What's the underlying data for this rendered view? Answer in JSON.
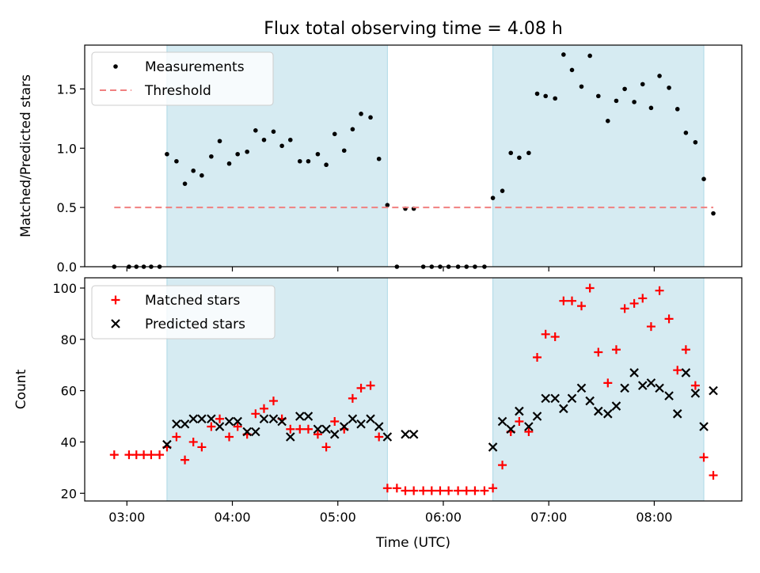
{
  "chart_data": {
    "title": "Flux total observing time = 4.08 h",
    "type": "scatter",
    "x_unit": "hours UTC",
    "xlabel": "Time (UTC)",
    "xlim": [
      2.6,
      8.83
    ],
    "x_ticks": [
      3,
      4,
      5,
      6,
      7,
      8
    ],
    "x_tick_labels": [
      "03:00",
      "04:00",
      "05:00",
      "06:00",
      "07:00",
      "08:00"
    ],
    "shaded_intervals": [
      [
        3.38,
        5.47
      ],
      [
        6.47,
        8.47
      ]
    ],
    "shade_color": "#add8e6",
    "panels": [
      {
        "name": "ratio",
        "ylabel": "Matched/Predicted stars",
        "ylim": [
          0,
          1.87
        ],
        "y_ticks": [
          0.0,
          0.5,
          1.0,
          1.5
        ],
        "y_tick_labels": [
          "0.0",
          "0.5",
          "1.0",
          "1.5"
        ],
        "legend": {
          "position": "upper-left",
          "entries": [
            "Measurements",
            "Threshold"
          ]
        },
        "series": [
          {
            "name": "Measurements",
            "type": "scatter",
            "marker": "dot",
            "color": "#000000",
            "points": [
              [
                2.88,
                0.0
              ],
              [
                3.02,
                0.0
              ],
              [
                3.09,
                0.0
              ],
              [
                3.16,
                0.0
              ],
              [
                3.23,
                0.0
              ],
              [
                3.31,
                0.0
              ],
              [
                3.38,
                0.95
              ],
              [
                3.47,
                0.89
              ],
              [
                3.55,
                0.7
              ],
              [
                3.63,
                0.81
              ],
              [
                3.71,
                0.77
              ],
              [
                3.8,
                0.93
              ],
              [
                3.88,
                1.06
              ],
              [
                3.97,
                0.87
              ],
              [
                4.05,
                0.95
              ],
              [
                4.14,
                0.97
              ],
              [
                4.22,
                1.15
              ],
              [
                4.3,
                1.07
              ],
              [
                4.39,
                1.14
              ],
              [
                4.47,
                1.02
              ],
              [
                4.55,
                1.07
              ],
              [
                4.64,
                0.89
              ],
              [
                4.72,
                0.89
              ],
              [
                4.81,
                0.95
              ],
              [
                4.89,
                0.86
              ],
              [
                4.97,
                1.12
              ],
              [
                5.06,
                0.98
              ],
              [
                5.14,
                1.16
              ],
              [
                5.22,
                1.29
              ],
              [
                5.31,
                1.26
              ],
              [
                5.39,
                0.91
              ],
              [
                5.47,
                0.52
              ],
              [
                5.56,
                0.0
              ],
              [
                5.64,
                0.49
              ],
              [
                5.72,
                0.49
              ],
              [
                5.81,
                0.0
              ],
              [
                5.89,
                0.0
              ],
              [
                5.97,
                0.0
              ],
              [
                6.05,
                0.0
              ],
              [
                6.14,
                0.0
              ],
              [
                6.22,
                0.0
              ],
              [
                6.3,
                0.0
              ],
              [
                6.39,
                0.0
              ],
              [
                6.47,
                0.58
              ],
              [
                6.56,
                0.64
              ],
              [
                6.64,
                0.96
              ],
              [
                6.72,
                0.92
              ],
              [
                6.81,
                0.96
              ],
              [
                6.89,
                1.46
              ],
              [
                6.97,
                1.44
              ],
              [
                7.06,
                1.42
              ],
              [
                7.14,
                1.79
              ],
              [
                7.22,
                1.66
              ],
              [
                7.31,
                1.52
              ],
              [
                7.39,
                1.78
              ],
              [
                7.47,
                1.44
              ],
              [
                7.56,
                1.23
              ],
              [
                7.64,
                1.4
              ],
              [
                7.72,
                1.5
              ],
              [
                7.81,
                1.39
              ],
              [
                7.89,
                1.54
              ],
              [
                7.97,
                1.34
              ],
              [
                8.05,
                1.61
              ],
              [
                8.14,
                1.51
              ],
              [
                8.22,
                1.33
              ],
              [
                8.3,
                1.13
              ],
              [
                8.39,
                1.05
              ],
              [
                8.47,
                0.74
              ],
              [
                8.56,
                0.45
              ]
            ]
          },
          {
            "name": "Threshold",
            "type": "line",
            "style": "dashed",
            "color": "#f08080",
            "y": 0.5,
            "x_range": [
              2.88,
              8.56
            ]
          }
        ]
      },
      {
        "name": "counts",
        "ylabel": "Count",
        "ylim": [
          17,
          104
        ],
        "y_ticks": [
          20,
          40,
          60,
          80,
          100
        ],
        "y_tick_labels": [
          "20",
          "40",
          "60",
          "80",
          "100"
        ],
        "legend": {
          "position": "upper-left",
          "entries": [
            "Matched stars",
            "Predicted stars"
          ]
        },
        "series": [
          {
            "name": "Matched stars",
            "type": "scatter",
            "marker": "plus",
            "color": "#ff0000",
            "points": [
              [
                2.88,
                35
              ],
              [
                3.02,
                35
              ],
              [
                3.09,
                35
              ],
              [
                3.16,
                35
              ],
              [
                3.23,
                35
              ],
              [
                3.31,
                35
              ],
              [
                3.38,
                38
              ],
              [
                3.47,
                42
              ],
              [
                3.55,
                33
              ],
              [
                3.63,
                40
              ],
              [
                3.71,
                38
              ],
              [
                3.8,
                46
              ],
              [
                3.88,
                49
              ],
              [
                3.97,
                42
              ],
              [
                4.05,
                46
              ],
              [
                4.14,
                43
              ],
              [
                4.22,
                51
              ],
              [
                4.3,
                53
              ],
              [
                4.39,
                56
              ],
              [
                4.47,
                49
              ],
              [
                4.55,
                45
              ],
              [
                4.64,
                45
              ],
              [
                4.72,
                45
              ],
              [
                4.81,
                43
              ],
              [
                4.89,
                38
              ],
              [
                4.97,
                48
              ],
              [
                5.06,
                45
              ],
              [
                5.14,
                57
              ],
              [
                5.22,
                61
              ],
              [
                5.31,
                62
              ],
              [
                5.39,
                42
              ],
              [
                5.47,
                22
              ],
              [
                5.56,
                22
              ],
              [
                5.64,
                21
              ],
              [
                5.72,
                21
              ],
              [
                5.81,
                21
              ],
              [
                5.89,
                21
              ],
              [
                5.97,
                21
              ],
              [
                6.05,
                21
              ],
              [
                6.14,
                21
              ],
              [
                6.22,
                21
              ],
              [
                6.3,
                21
              ],
              [
                6.39,
                21
              ],
              [
                6.47,
                22
              ],
              [
                6.56,
                31
              ],
              [
                6.64,
                44
              ],
              [
                6.72,
                48
              ],
              [
                6.81,
                44
              ],
              [
                6.89,
                73
              ],
              [
                6.97,
                82
              ],
              [
                7.06,
                81
              ],
              [
                7.14,
                95
              ],
              [
                7.22,
                95
              ],
              [
                7.31,
                93
              ],
              [
                7.39,
                100
              ],
              [
                7.47,
                75
              ],
              [
                7.56,
                63
              ],
              [
                7.64,
                76
              ],
              [
                7.72,
                92
              ],
              [
                7.81,
                94
              ],
              [
                7.89,
                96
              ],
              [
                7.97,
                85
              ],
              [
                8.05,
                99
              ],
              [
                8.14,
                88
              ],
              [
                8.22,
                68
              ],
              [
                8.3,
                76
              ],
              [
                8.39,
                62
              ],
              [
                8.47,
                34
              ],
              [
                8.56,
                27
              ]
            ]
          },
          {
            "name": "Predicted stars",
            "type": "scatter",
            "marker": "x",
            "color": "#000000",
            "points": [
              [
                3.38,
                39
              ],
              [
                3.47,
                47
              ],
              [
                3.55,
                47
              ],
              [
                3.63,
                49
              ],
              [
                3.71,
                49
              ],
              [
                3.8,
                49
              ],
              [
                3.88,
                46
              ],
              [
                3.97,
                48
              ],
              [
                4.05,
                48
              ],
              [
                4.14,
                44
              ],
              [
                4.22,
                44
              ],
              [
                4.3,
                49
              ],
              [
                4.39,
                49
              ],
              [
                4.47,
                48
              ],
              [
                4.55,
                42
              ],
              [
                4.64,
                50
              ],
              [
                4.72,
                50
              ],
              [
                4.81,
                45
              ],
              [
                4.89,
                45
              ],
              [
                4.97,
                43
              ],
              [
                5.06,
                46
              ],
              [
                5.14,
                49
              ],
              [
                5.22,
                47
              ],
              [
                5.31,
                49
              ],
              [
                5.39,
                46
              ],
              [
                5.47,
                42
              ],
              [
                5.64,
                43
              ],
              [
                5.72,
                43
              ],
              [
                6.47,
                38
              ],
              [
                6.56,
                48
              ],
              [
                6.64,
                45
              ],
              [
                6.72,
                52
              ],
              [
                6.81,
                46
              ],
              [
                6.89,
                50
              ],
              [
                6.97,
                57
              ],
              [
                7.06,
                57
              ],
              [
                7.14,
                53
              ],
              [
                7.22,
                57
              ],
              [
                7.31,
                61
              ],
              [
                7.39,
                56
              ],
              [
                7.47,
                52
              ],
              [
                7.56,
                51
              ],
              [
                7.64,
                54
              ],
              [
                7.72,
                61
              ],
              [
                7.81,
                67
              ],
              [
                7.89,
                62
              ],
              [
                7.97,
                63
              ],
              [
                8.05,
                61
              ],
              [
                8.14,
                58
              ],
              [
                8.22,
                51
              ],
              [
                8.3,
                67
              ],
              [
                8.39,
                59
              ],
              [
                8.47,
                46
              ],
              [
                8.56,
                60
              ]
            ]
          }
        ]
      }
    ]
  }
}
